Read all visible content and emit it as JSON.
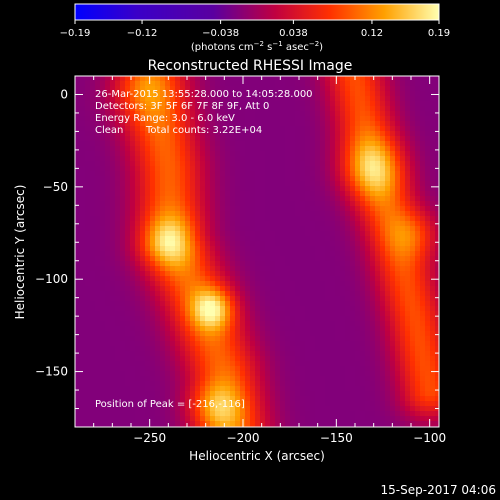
{
  "chart_data": {
    "type": "heatmap",
    "title": "Reconstructed RHESSI Image",
    "xlabel": "Heliocentric X (arcsec)",
    "ylabel": "Heliocentric Y (arcsec)",
    "xlim": [
      -290,
      -95
    ],
    "ylim": [
      -180,
      10
    ],
    "x_ticks": [
      -250,
      -200,
      -150,
      -100
    ],
    "x_tick_labels": [
      "−250",
      "−200",
      "−150",
      "−100"
    ],
    "y_ticks": [
      0,
      -50,
      -100,
      -150
    ],
    "y_tick_labels": [
      "0",
      "−50",
      "−100",
      "−150"
    ],
    "colorbar": {
      "range": [
        -0.19,
        0.19
      ],
      "ticks": [
        -0.19,
        -0.12,
        -0.038,
        0.038,
        0.12,
        0.19
      ],
      "tick_labels": [
        "−0.19",
        "−0.12",
        "−0.038",
        "0.038",
        "0.12",
        "0.19"
      ],
      "unit_prefix": "(photons cm",
      "unit_exp1": "−2",
      "unit_mid": " s",
      "unit_exp2": "−1",
      "unit_mid2": " asec",
      "unit_exp3": "−2",
      "unit_suffix": ")"
    },
    "annotations": {
      "time_range": "26-Mar-2015 13:55:28.000 to 14:05:28.000",
      "detectors": "Detectors: 3F 5F 6F 7F 8F 9F, Att 0",
      "energy": "Energy Range: 3.0 - 6.0 keV",
      "algorithm": "Clean",
      "total_counts": "Total counts: 3.22E+04",
      "peak_position": "Position of Peak = [-216,-116]"
    },
    "peak": [
      -216,
      -116
    ],
    "footer_timestamp": "15-Sep-2017 04:06",
    "grid": false,
    "bands": [
      {
        "name": "left band",
        "ridge": [
          [
            -248,
            5
          ],
          [
            -240,
            -40
          ],
          [
            -238,
            -80
          ],
          [
            -225,
            -110
          ],
          [
            -210,
            -150
          ],
          [
            -205,
            -180
          ]
        ],
        "width": 26,
        "base": 0.12
      },
      {
        "name": "right band",
        "ridge": [
          [
            -140,
            10
          ],
          [
            -130,
            -40
          ],
          [
            -118,
            -80
          ],
          [
            -108,
            -120
          ],
          [
            -100,
            -160
          ]
        ],
        "width": 22,
        "base": 0.11
      }
    ],
    "blobs": [
      {
        "x": -216,
        "y": -116,
        "amp": 0.19,
        "s": 8
      },
      {
        "x": -240,
        "y": -80,
        "amp": 0.17,
        "s": 10
      },
      {
        "x": -255,
        "y": 0,
        "amp": 0.12,
        "s": 12
      },
      {
        "x": -215,
        "y": -170,
        "amp": 0.16,
        "s": 10
      },
      {
        "x": -130,
        "y": -40,
        "amp": 0.17,
        "s": 12
      },
      {
        "x": -108,
        "y": -75,
        "amp": 0.14,
        "s": 10
      }
    ],
    "background_level": -0.02
  }
}
